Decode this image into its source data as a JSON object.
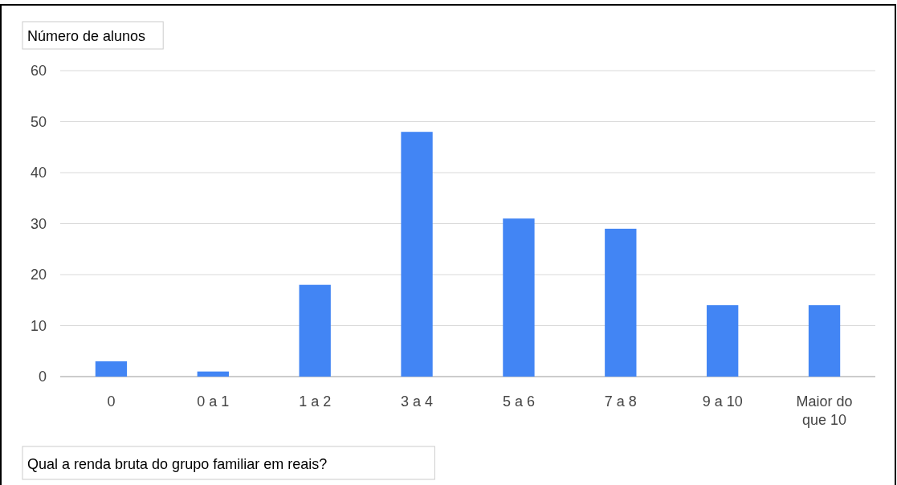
{
  "chart_data": {
    "type": "bar",
    "ylabel": "Número de alunos",
    "xlabel": "Qual a renda bruta do grupo familiar em reais?",
    "categories": [
      "0",
      "0 a 1",
      "1 a 2",
      "3 a 4",
      "5 a 6",
      "7 a 8",
      "9 a 10",
      "Maior do que 10"
    ],
    "values": [
      3,
      1,
      18,
      48,
      31,
      29,
      14,
      14
    ],
    "color": "#4285f4",
    "ylim": [
      0,
      60
    ],
    "yticks": [
      0,
      10,
      20,
      30,
      40,
      50,
      60
    ],
    "grid": "y"
  }
}
